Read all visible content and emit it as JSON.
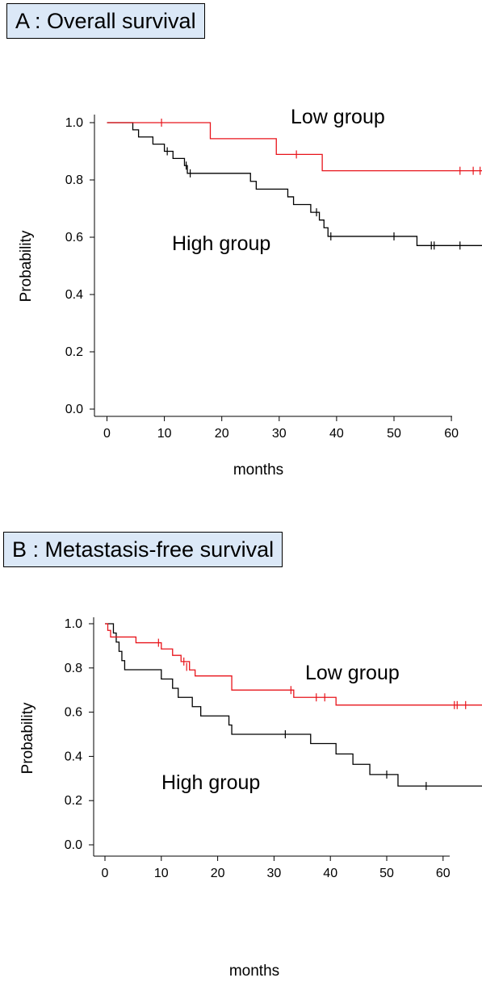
{
  "chart_data": [
    {
      "type": "line",
      "title": "A : Overall survival",
      "xlabel": "months",
      "ylabel": "Probability",
      "xlim": [
        0,
        62
      ],
      "ylim": [
        0,
        1.0
      ],
      "xticks": [
        "0",
        "10",
        "20",
        "30",
        "40",
        "50",
        "60"
      ],
      "yticks": [
        "0.0",
        "0.2",
        "0.4",
        "0.6",
        "0.8",
        "1.0"
      ],
      "colors": {
        "low": "#e8141b",
        "high": "#000000"
      },
      "annotations": {
        "low": "Low group",
        "high": "High group"
      },
      "series": [
        {
          "name": "Low group",
          "steps": [
            [
              0,
              1.0
            ],
            [
              18,
              0.944
            ],
            [
              29.5,
              0.889
            ],
            [
              37.5,
              0.832
            ],
            [
              67.5,
              0.832
            ]
          ],
          "censors": [
            [
              9.5,
              1.0
            ],
            [
              33,
              0.889
            ],
            [
              61.5,
              0.832
            ],
            [
              63.8,
              0.832
            ],
            [
              65,
              0.832
            ]
          ]
        },
        {
          "name": "High group",
          "steps": [
            [
              0,
              1.0
            ],
            [
              4.5,
              0.975
            ],
            [
              5.5,
              0.95
            ],
            [
              8,
              0.925
            ],
            [
              10,
              0.9
            ],
            [
              11.5,
              0.875
            ],
            [
              13.5,
              0.85
            ],
            [
              14,
              0.823
            ],
            [
              25,
              0.795
            ],
            [
              26,
              0.768
            ],
            [
              31.5,
              0.741
            ],
            [
              32.5,
              0.714
            ],
            [
              35.5,
              0.687
            ],
            [
              37,
              0.66
            ],
            [
              37.8,
              0.633
            ],
            [
              38.5,
              0.603
            ],
            [
              54,
              0.571
            ],
            [
              67.5,
              0.571
            ]
          ],
          "censors": [
            [
              10.5,
              0.9
            ],
            [
              13.8,
              0.85
            ],
            [
              14.5,
              0.823
            ],
            [
              36.5,
              0.687
            ],
            [
              39,
              0.603
            ],
            [
              50,
              0.603
            ],
            [
              56.5,
              0.571
            ],
            [
              57,
              0.571
            ],
            [
              61.5,
              0.571
            ],
            [
              66,
              0.571
            ]
          ]
        }
      ]
    },
    {
      "type": "line",
      "title": "B : Metastasis-free survival",
      "xlabel": "months",
      "ylabel": "Probability",
      "xlim": [
        0,
        62
      ],
      "ylim": [
        0,
        1.0
      ],
      "xticks": [
        "0",
        "10",
        "20",
        "30",
        "40",
        "50",
        "60"
      ],
      "yticks": [
        "0.0",
        "0.2",
        "0.4",
        "0.6",
        "0.8",
        "1.0"
      ],
      "colors": {
        "low": "#e8141b",
        "high": "#000000"
      },
      "annotations": {
        "low": "Low group",
        "high": "High group"
      },
      "series": [
        {
          "name": "Low group",
          "steps": [
            [
              0,
              1.0
            ],
            [
              0.5,
              0.97
            ],
            [
              1,
              0.94
            ],
            [
              5.5,
              0.914
            ],
            [
              10,
              0.886
            ],
            [
              12,
              0.857
            ],
            [
              13.5,
              0.829
            ],
            [
              15,
              0.791
            ],
            [
              16,
              0.764
            ],
            [
              22.5,
              0.7
            ],
            [
              33.5,
              0.667
            ],
            [
              41,
              0.632
            ],
            [
              67.5,
              0.632
            ]
          ],
          "censors": [
            [
              9.5,
              0.914
            ],
            [
              14,
              0.829
            ],
            [
              14.5,
              0.805
            ],
            [
              33,
              0.7
            ],
            [
              37.5,
              0.667
            ],
            [
              39,
              0.667
            ],
            [
              62,
              0.632
            ],
            [
              62.5,
              0.632
            ],
            [
              64,
              0.632
            ]
          ]
        },
        {
          "name": "High group",
          "steps": [
            [
              0,
              1.0
            ],
            [
              1.5,
              0.958
            ],
            [
              2,
              0.917
            ],
            [
              2.5,
              0.875
            ],
            [
              3,
              0.833
            ],
            [
              3.5,
              0.792
            ],
            [
              10,
              0.75
            ],
            [
              12,
              0.708
            ],
            [
              13,
              0.667
            ],
            [
              15.5,
              0.625
            ],
            [
              17,
              0.583
            ],
            [
              22,
              0.542
            ],
            [
              22.5,
              0.5
            ],
            [
              36.5,
              0.458
            ],
            [
              41,
              0.411
            ],
            [
              44,
              0.364
            ],
            [
              47,
              0.318
            ],
            [
              52,
              0.266
            ],
            [
              67.5,
              0.266
            ]
          ],
          "censors": [
            [
              32,
              0.5
            ],
            [
              50,
              0.318
            ],
            [
              57,
              0.266
            ]
          ]
        }
      ]
    }
  ]
}
